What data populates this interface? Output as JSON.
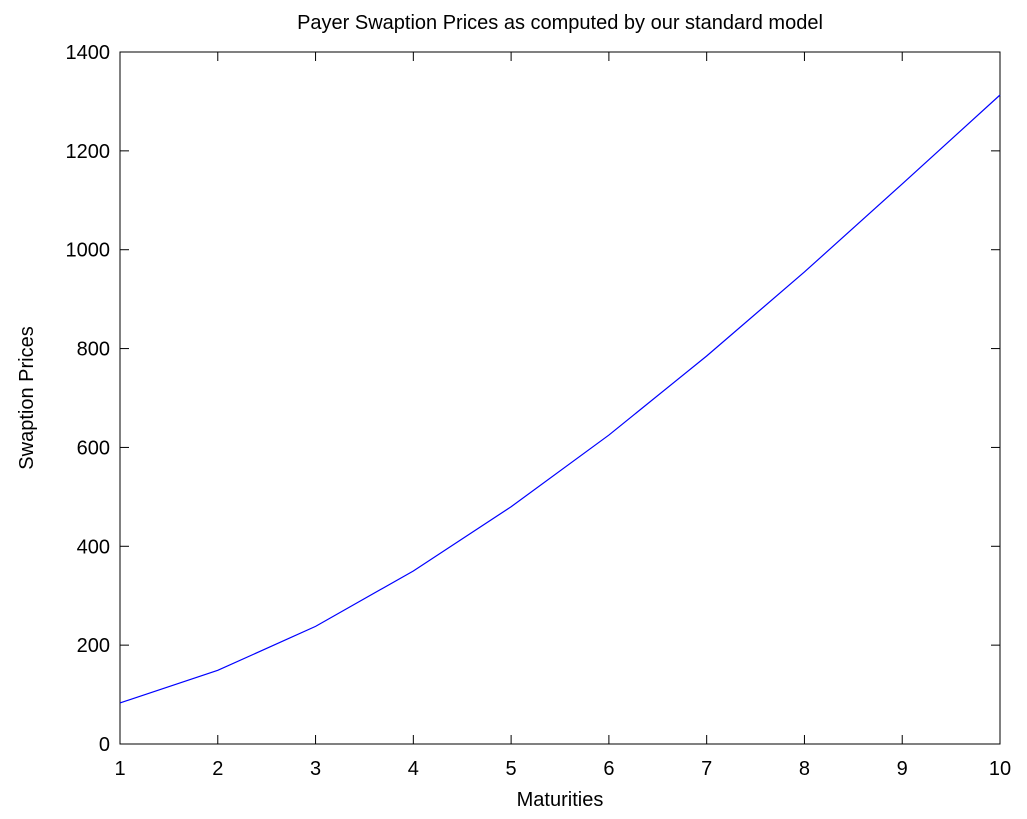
{
  "chart_data": {
    "type": "line",
    "title": "Payer Swaption Prices as computed by our standard model",
    "xlabel": "Maturities",
    "ylabel": "Swaption Prices",
    "xlim": [
      1,
      10
    ],
    "ylim": [
      0,
      1400
    ],
    "xticks": [
      "1",
      "2",
      "3",
      "4",
      "5",
      "6",
      "7",
      "8",
      "9",
      "10"
    ],
    "yticks": [
      "0",
      "200",
      "400",
      "600",
      "800",
      "1000",
      "1200",
      "1400"
    ],
    "grid": false,
    "series": [
      {
        "color": "#0000ff",
        "x": [
          1,
          2,
          3,
          4,
          5,
          6,
          7,
          8,
          9,
          10
        ],
        "y": [
          83,
          149,
          238,
          350,
          480,
          625,
          785,
          955,
          1133,
          1313
        ]
      }
    ]
  }
}
